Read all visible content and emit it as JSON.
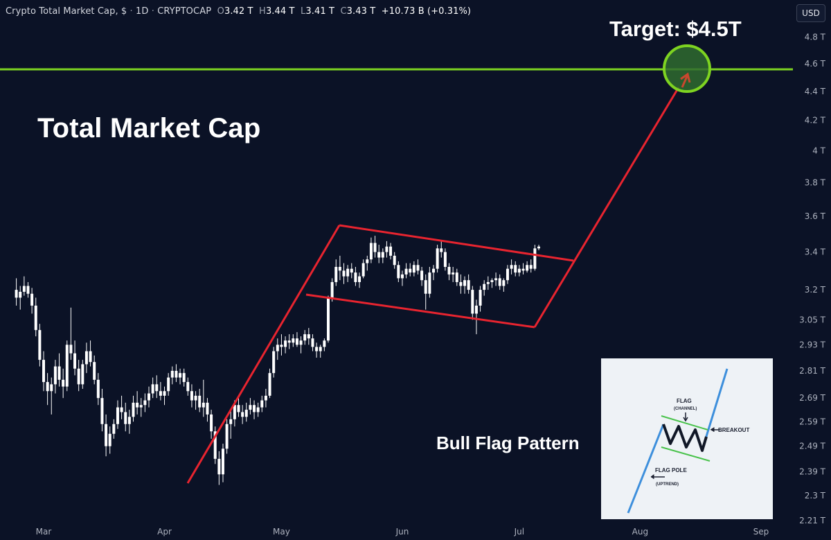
{
  "header": {
    "symbol": "Crypto Total Market Cap, $",
    "interval": "1D",
    "exchange": "CRYPTOCAP",
    "o_label": "O",
    "o_value": "3.42 T",
    "h_label": "H",
    "h_value": "3.44 T",
    "l_label": "L",
    "l_value": "3.41 T",
    "c_label": "C",
    "c_value": "3.43 T",
    "change": "+10.73 B (+0.31%)"
  },
  "currency_button": "USD",
  "annotations": {
    "title": "Total Market Cap",
    "target": "Target: $4.5T",
    "pattern_label": "Bull Flag Pattern"
  },
  "inset": {
    "flag": "FLAG",
    "channel": "(CHANNEL)",
    "breakout": "BREAKOUT",
    "pole": "FLAG POLE",
    "uptrend": "(UPTREND)"
  },
  "colors": {
    "background": "#0b1226",
    "candle": "#ffffff",
    "pattern": "#e8242f",
    "target_line": "#7ed321",
    "target_circle_fill": "#2f6b2f",
    "inset_bg": "#eef2f6",
    "inset_pole": "#3d8fdc",
    "inset_channel": "#48c24a"
  },
  "chart_data": {
    "type": "candlestick",
    "scale": "log",
    "ylim": [
      2.2,
      4.9
    ],
    "y_ticks": [
      "4.8 T",
      "4.6 T",
      "4.4 T",
      "4.2 T",
      "4 T",
      "3.8 T",
      "3.6 T",
      "3.4 T",
      "3.2 T",
      "3.05 T",
      "2.93 T",
      "2.81 T",
      "2.69 T",
      "2.59 T",
      "2.49 T",
      "2.39 T",
      "2.3 T",
      "2.21 T"
    ],
    "y_tick_values": [
      4.8,
      4.6,
      4.4,
      4.2,
      4.0,
      3.8,
      3.6,
      3.4,
      3.2,
      3.05,
      2.93,
      2.81,
      2.69,
      2.59,
      2.49,
      2.39,
      2.3,
      2.21
    ],
    "x_ticks": [
      "Mar",
      "Apr",
      "May",
      "Jun",
      "Jul",
      "Aug",
      "Sep"
    ],
    "x_tick_dates": [
      "2024-03-01",
      "2024-04-01",
      "2024-05-01",
      "2024-06-01",
      "2024-07-01",
      "2024-08-01",
      "2024-09-01"
    ],
    "target_level": 4.5,
    "series": [
      {
        "start_date": "2024-02-23",
        "ohlc": [
          [
            3.2,
            3.26,
            3.12,
            3.16
          ],
          [
            3.16,
            3.22,
            3.1,
            3.19
          ],
          [
            3.19,
            3.27,
            3.17,
            3.22
          ],
          [
            3.22,
            3.24,
            3.16,
            3.18
          ],
          [
            3.18,
            3.21,
            3.08,
            3.12
          ],
          [
            3.12,
            3.16,
            2.97,
            3.0
          ],
          [
            3.0,
            3.03,
            2.83,
            2.86
          ],
          [
            2.86,
            2.9,
            2.72,
            2.76
          ],
          [
            2.76,
            2.8,
            2.66,
            2.72
          ],
          [
            2.72,
            2.78,
            2.62,
            2.75
          ],
          [
            2.75,
            2.86,
            2.71,
            2.83
          ],
          [
            2.83,
            2.89,
            2.74,
            2.77
          ],
          [
            2.77,
            2.82,
            2.69,
            2.74
          ],
          [
            2.74,
            2.95,
            2.72,
            2.93
          ],
          [
            2.93,
            3.11,
            2.86,
            2.89
          ],
          [
            2.89,
            2.95,
            2.79,
            2.82
          ],
          [
            2.82,
            2.86,
            2.72,
            2.75
          ],
          [
            2.75,
            2.86,
            2.73,
            2.84
          ],
          [
            2.84,
            2.94,
            2.8,
            2.9
          ],
          [
            2.9,
            2.95,
            2.83,
            2.85
          ],
          [
            2.85,
            2.88,
            2.75,
            2.77
          ],
          [
            2.77,
            2.8,
            2.66,
            2.69
          ],
          [
            2.69,
            2.73,
            2.55,
            2.58
          ],
          [
            2.58,
            2.62,
            2.45,
            2.49
          ],
          [
            2.49,
            2.57,
            2.46,
            2.54
          ],
          [
            2.54,
            2.6,
            2.52,
            2.58
          ],
          [
            2.58,
            2.68,
            2.56,
            2.65
          ],
          [
            2.65,
            2.7,
            2.6,
            2.63
          ],
          [
            2.63,
            2.67,
            2.55,
            2.58
          ],
          [
            2.58,
            2.64,
            2.54,
            2.61
          ],
          [
            2.61,
            2.7,
            2.59,
            2.67
          ],
          [
            2.67,
            2.72,
            2.62,
            2.65
          ],
          [
            2.65,
            2.69,
            2.61,
            2.66
          ],
          [
            2.66,
            2.71,
            2.63,
            2.68
          ],
          [
            2.68,
            2.74,
            2.65,
            2.71
          ],
          [
            2.71,
            2.78,
            2.69,
            2.75
          ],
          [
            2.75,
            2.79,
            2.69,
            2.72
          ],
          [
            2.72,
            2.76,
            2.68,
            2.7
          ],
          [
            2.7,
            2.74,
            2.66,
            2.72
          ],
          [
            2.72,
            2.8,
            2.7,
            2.78
          ],
          [
            2.78,
            2.83,
            2.75,
            2.81
          ],
          [
            2.81,
            2.84,
            2.76,
            2.78
          ],
          [
            2.78,
            2.82,
            2.75,
            2.8
          ],
          [
            2.8,
            2.82,
            2.74,
            2.76
          ],
          [
            2.76,
            2.78,
            2.7,
            2.72
          ],
          [
            2.72,
            2.75,
            2.65,
            2.68
          ],
          [
            2.68,
            2.72,
            2.64,
            2.7
          ],
          [
            2.7,
            2.73,
            2.63,
            2.65
          ],
          [
            2.65,
            2.77,
            2.61,
            2.67
          ],
          [
            2.67,
            2.69,
            2.59,
            2.62
          ],
          [
            2.62,
            2.64,
            2.52,
            2.55
          ],
          [
            2.55,
            2.57,
            2.42,
            2.44
          ],
          [
            2.44,
            2.47,
            2.34,
            2.38
          ],
          [
            2.38,
            2.5,
            2.35,
            2.48
          ],
          [
            2.48,
            2.6,
            2.46,
            2.58
          ],
          [
            2.58,
            2.64,
            2.52,
            2.6
          ],
          [
            2.6,
            2.68,
            2.57,
            2.66
          ],
          [
            2.66,
            2.7,
            2.61,
            2.63
          ],
          [
            2.63,
            2.66,
            2.58,
            2.61
          ],
          [
            2.61,
            2.67,
            2.59,
            2.64
          ],
          [
            2.64,
            2.69,
            2.62,
            2.66
          ],
          [
            2.66,
            2.68,
            2.6,
            2.63
          ],
          [
            2.63,
            2.67,
            2.61,
            2.65
          ],
          [
            2.65,
            2.7,
            2.63,
            2.68
          ],
          [
            2.68,
            2.73,
            2.65,
            2.7
          ],
          [
            2.7,
            2.82,
            2.69,
            2.8
          ],
          [
            2.8,
            2.92,
            2.78,
            2.9
          ],
          [
            2.9,
            2.96,
            2.86,
            2.93
          ],
          [
            2.93,
            2.98,
            2.88,
            2.92
          ],
          [
            2.92,
            2.97,
            2.89,
            2.95
          ],
          [
            2.95,
            2.98,
            2.91,
            2.94
          ],
          [
            2.94,
            2.98,
            2.92,
            2.96
          ],
          [
            2.96,
            2.99,
            2.92,
            2.93
          ],
          [
            2.93,
            2.97,
            2.89,
            2.95
          ],
          [
            2.95,
            3.0,
            2.93,
            2.98
          ],
          [
            2.98,
            3.01,
            2.93,
            2.96
          ],
          [
            2.96,
            2.98,
            2.9,
            2.92
          ],
          [
            2.92,
            2.94,
            2.87,
            2.9
          ],
          [
            2.9,
            2.93,
            2.87,
            2.92
          ],
          [
            2.92,
            2.96,
            2.9,
            2.95
          ],
          [
            2.95,
            3.17,
            2.94,
            3.16
          ],
          [
            3.16,
            3.26,
            3.14,
            3.24
          ],
          [
            3.24,
            3.36,
            3.22,
            3.32
          ],
          [
            3.32,
            3.38,
            3.25,
            3.3
          ],
          [
            3.3,
            3.34,
            3.23,
            3.27
          ],
          [
            3.27,
            3.33,
            3.24,
            3.31
          ],
          [
            3.31,
            3.34,
            3.26,
            3.29
          ],
          [
            3.29,
            3.32,
            3.22,
            3.24
          ],
          [
            3.24,
            3.29,
            3.21,
            3.27
          ],
          [
            3.27,
            3.36,
            3.26,
            3.34
          ],
          [
            3.34,
            3.38,
            3.3,
            3.36
          ],
          [
            3.36,
            3.48,
            3.34,
            3.45
          ],
          [
            3.45,
            3.49,
            3.37,
            3.4
          ],
          [
            3.4,
            3.44,
            3.34,
            3.37
          ],
          [
            3.37,
            3.42,
            3.34,
            3.4
          ],
          [
            3.4,
            3.46,
            3.37,
            3.43
          ],
          [
            3.43,
            3.45,
            3.36,
            3.38
          ],
          [
            3.38,
            3.4,
            3.31,
            3.33
          ],
          [
            3.33,
            3.35,
            3.24,
            3.26
          ],
          [
            3.26,
            3.3,
            3.22,
            3.28
          ],
          [
            3.28,
            3.34,
            3.26,
            3.31
          ],
          [
            3.31,
            3.34,
            3.27,
            3.29
          ],
          [
            3.29,
            3.35,
            3.27,
            3.33
          ],
          [
            3.33,
            3.36,
            3.28,
            3.3
          ],
          [
            3.3,
            3.32,
            3.22,
            3.25
          ],
          [
            3.25,
            3.28,
            3.1,
            3.18
          ],
          [
            3.18,
            3.32,
            3.16,
            3.29
          ],
          [
            3.29,
            3.33,
            3.25,
            3.31
          ],
          [
            3.31,
            3.44,
            3.29,
            3.42
          ],
          [
            3.42,
            3.46,
            3.37,
            3.4
          ],
          [
            3.4,
            3.42,
            3.3,
            3.32
          ],
          [
            3.32,
            3.34,
            3.25,
            3.28
          ],
          [
            3.28,
            3.32,
            3.24,
            3.29
          ],
          [
            3.29,
            3.31,
            3.22,
            3.24
          ],
          [
            3.24,
            3.28,
            3.18,
            3.22
          ],
          [
            3.22,
            3.27,
            3.18,
            3.25
          ],
          [
            3.25,
            3.28,
            3.18,
            3.2
          ],
          [
            3.2,
            3.22,
            3.05,
            3.08
          ],
          [
            3.08,
            3.15,
            2.98,
            3.12
          ],
          [
            3.12,
            3.22,
            3.09,
            3.2
          ],
          [
            3.2,
            3.25,
            3.17,
            3.23
          ],
          [
            3.23,
            3.27,
            3.2,
            3.24
          ],
          [
            3.24,
            3.26,
            3.21,
            3.25
          ],
          [
            3.25,
            3.29,
            3.22,
            3.26
          ],
          [
            3.26,
            3.28,
            3.2,
            3.22
          ],
          [
            3.22,
            3.26,
            3.19,
            3.25
          ],
          [
            3.25,
            3.33,
            3.23,
            3.31
          ],
          [
            3.31,
            3.36,
            3.28,
            3.33
          ],
          [
            3.33,
            3.35,
            3.27,
            3.29
          ],
          [
            3.29,
            3.33,
            3.27,
            3.31
          ],
          [
            3.31,
            3.34,
            3.28,
            3.3
          ],
          [
            3.3,
            3.35,
            3.29,
            3.33
          ],
          [
            3.33,
            3.36,
            3.29,
            3.31
          ],
          [
            3.31,
            3.44,
            3.3,
            3.42
          ],
          [
            3.42,
            3.44,
            3.41,
            3.43
          ]
        ]
      }
    ]
  }
}
